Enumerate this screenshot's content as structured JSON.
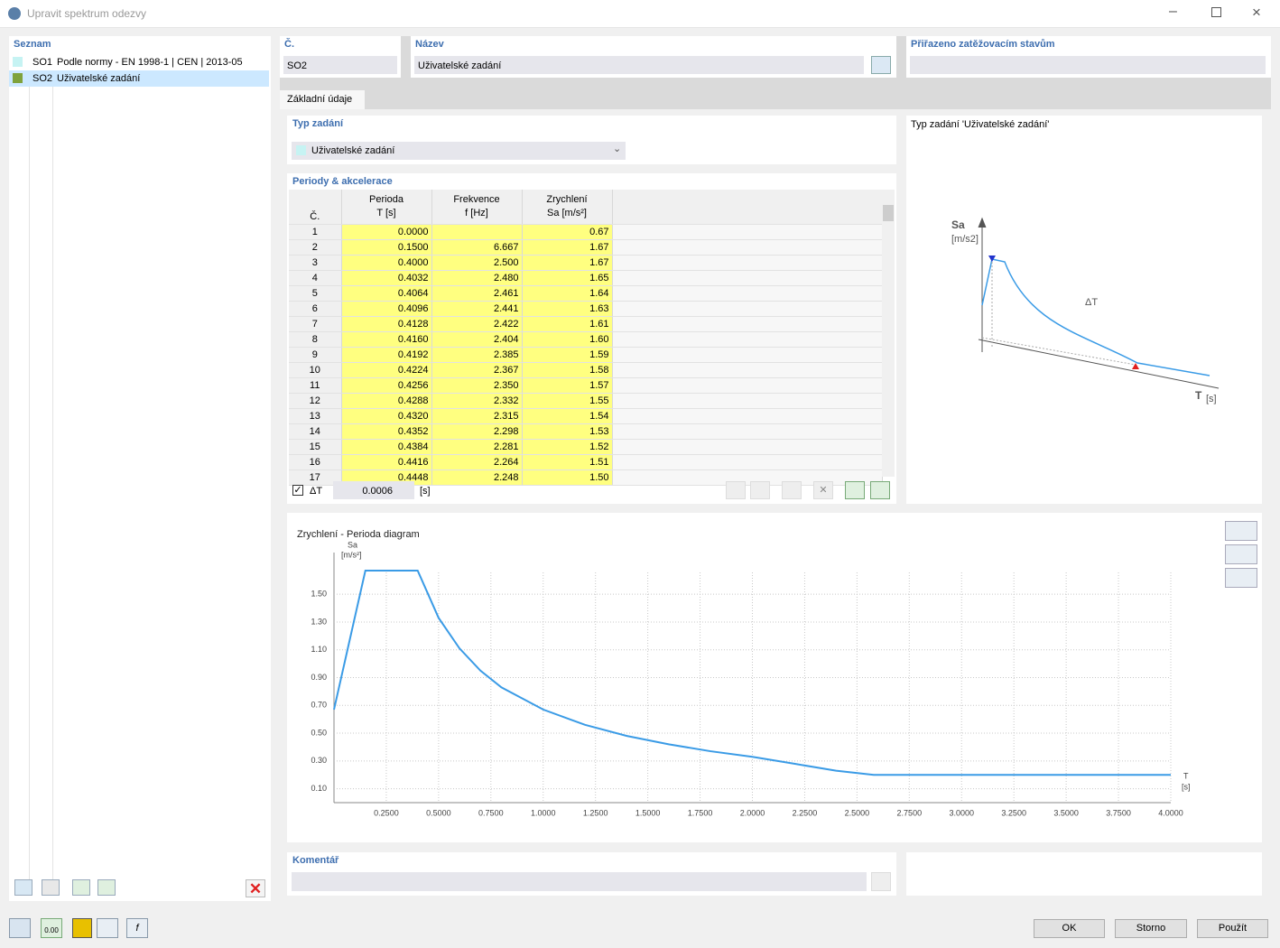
{
  "window": {
    "title": "Upravit spektrum odezvy"
  },
  "list": {
    "title": "Seznam",
    "items": [
      {
        "id": "SO1",
        "label": "Podle normy - EN 1998-1 | CEN | 2013-05",
        "color": "#c6f3f3"
      },
      {
        "id": "SO2",
        "label": "Uživatelské zadání",
        "color": "#7fa23c"
      }
    ]
  },
  "fields": {
    "number_label": "Č.",
    "number": "SO2",
    "name_label": "Název",
    "name": "Uživatelské zadání",
    "assigned_label": "Přiřazeno zatěžovacím stavům"
  },
  "tab": "Základní údaje",
  "input_type": {
    "label": "Typ zadání",
    "value": "Uživatelské zadání"
  },
  "table": {
    "title": "Periody & akcelerace",
    "columns": [
      [
        "Č."
      ],
      [
        "Perioda",
        "T [s]"
      ],
      [
        "Frekvence",
        "f [Hz]"
      ],
      [
        "Zrychlení",
        "Sa [m/s²]"
      ]
    ],
    "rows": [
      [
        "1",
        "0.0000",
        "",
        "0.67"
      ],
      [
        "2",
        "0.1500",
        "6.667",
        "1.67"
      ],
      [
        "3",
        "0.4000",
        "2.500",
        "1.67"
      ],
      [
        "4",
        "0.4032",
        "2.480",
        "1.65"
      ],
      [
        "5",
        "0.4064",
        "2.461",
        "1.64"
      ],
      [
        "6",
        "0.4096",
        "2.441",
        "1.63"
      ],
      [
        "7",
        "0.4128",
        "2.422",
        "1.61"
      ],
      [
        "8",
        "0.4160",
        "2.404",
        "1.60"
      ],
      [
        "9",
        "0.4192",
        "2.385",
        "1.59"
      ],
      [
        "10",
        "0.4224",
        "2.367",
        "1.58"
      ],
      [
        "11",
        "0.4256",
        "2.350",
        "1.57"
      ],
      [
        "12",
        "0.4288",
        "2.332",
        "1.55"
      ],
      [
        "13",
        "0.4320",
        "2.315",
        "1.54"
      ],
      [
        "14",
        "0.4352",
        "2.298",
        "1.53"
      ],
      [
        "15",
        "0.4384",
        "2.281",
        "1.52"
      ],
      [
        "16",
        "0.4416",
        "2.264",
        "1.51"
      ],
      [
        "17",
        "0.4448",
        "2.248",
        "1.50"
      ]
    ]
  },
  "delta": {
    "label": "ΔT",
    "value": "0.0006",
    "unit": "[s]"
  },
  "preview": {
    "title": "Typ zadání  'Uživatelské zadání'",
    "y_label": "Sa",
    "y_unit": "[m/s2]",
    "delta": "ΔT",
    "x_label": "T",
    "x_unit": "[s]"
  },
  "chart_data": {
    "type": "line",
    "title": "Zrychlení - Perioda diagram",
    "y_label": "Sa",
    "y_unit": "[m/s²]",
    "x_label": "T",
    "x_unit": "[s]",
    "x": [
      0,
      0.15,
      0.4,
      0.5,
      0.6,
      0.7,
      0.8,
      1.0,
      1.2,
      1.4,
      1.6,
      1.8,
      2.0,
      2.2,
      2.4,
      2.58,
      3.0,
      3.5,
      4.0
    ],
    "series": [
      {
        "name": "Sa",
        "color": "#3a9be6",
        "values": [
          0.67,
          1.67,
          1.67,
          1.33,
          1.11,
          0.95,
          0.83,
          0.67,
          0.56,
          0.48,
          0.42,
          0.37,
          0.33,
          0.28,
          0.23,
          0.2,
          0.2,
          0.2,
          0.2
        ]
      }
    ],
    "xlim": [
      0,
      4.0
    ],
    "ylim": [
      0,
      1.8
    ],
    "xticks": [
      {
        "value": 0.25,
        "label": "0.2500"
      },
      {
        "value": 0.5,
        "label": "0.5000"
      },
      {
        "value": 0.75,
        "label": "0.7500"
      },
      {
        "value": 1.0,
        "label": "1.0000"
      },
      {
        "value": 1.25,
        "label": "1.2500"
      },
      {
        "value": 1.5,
        "label": "1.5000"
      },
      {
        "value": 1.75,
        "label": "1.7500"
      },
      {
        "value": 2.0,
        "label": "2.0000"
      },
      {
        "value": 2.25,
        "label": "2.2500"
      },
      {
        "value": 2.5,
        "label": "2.5000"
      },
      {
        "value": 2.75,
        "label": "2.7500"
      },
      {
        "value": 3.0,
        "label": "3.0000"
      },
      {
        "value": 3.25,
        "label": "3.2500"
      },
      {
        "value": 3.5,
        "label": "3.5000"
      },
      {
        "value": 3.75,
        "label": "3.7500"
      },
      {
        "value": 4.0,
        "label": "4.0000"
      }
    ],
    "yticks": [
      {
        "value": 0.1,
        "label": "0.10"
      },
      {
        "value": 0.3,
        "label": "0.30"
      },
      {
        "value": 0.5,
        "label": "0.50"
      },
      {
        "value": 0.7,
        "label": "0.70"
      },
      {
        "value": 0.9,
        "label": "0.90"
      },
      {
        "value": 1.1,
        "label": "1.10"
      },
      {
        "value": 1.3,
        "label": "1.30"
      },
      {
        "value": 1.5,
        "label": "1.50"
      }
    ],
    "grid": true
  },
  "comment": {
    "label": "Komentář"
  },
  "toolbar_icon_text": "0.00",
  "buttons": {
    "ok": "OK",
    "cancel": "Storno",
    "apply": "Použít"
  }
}
